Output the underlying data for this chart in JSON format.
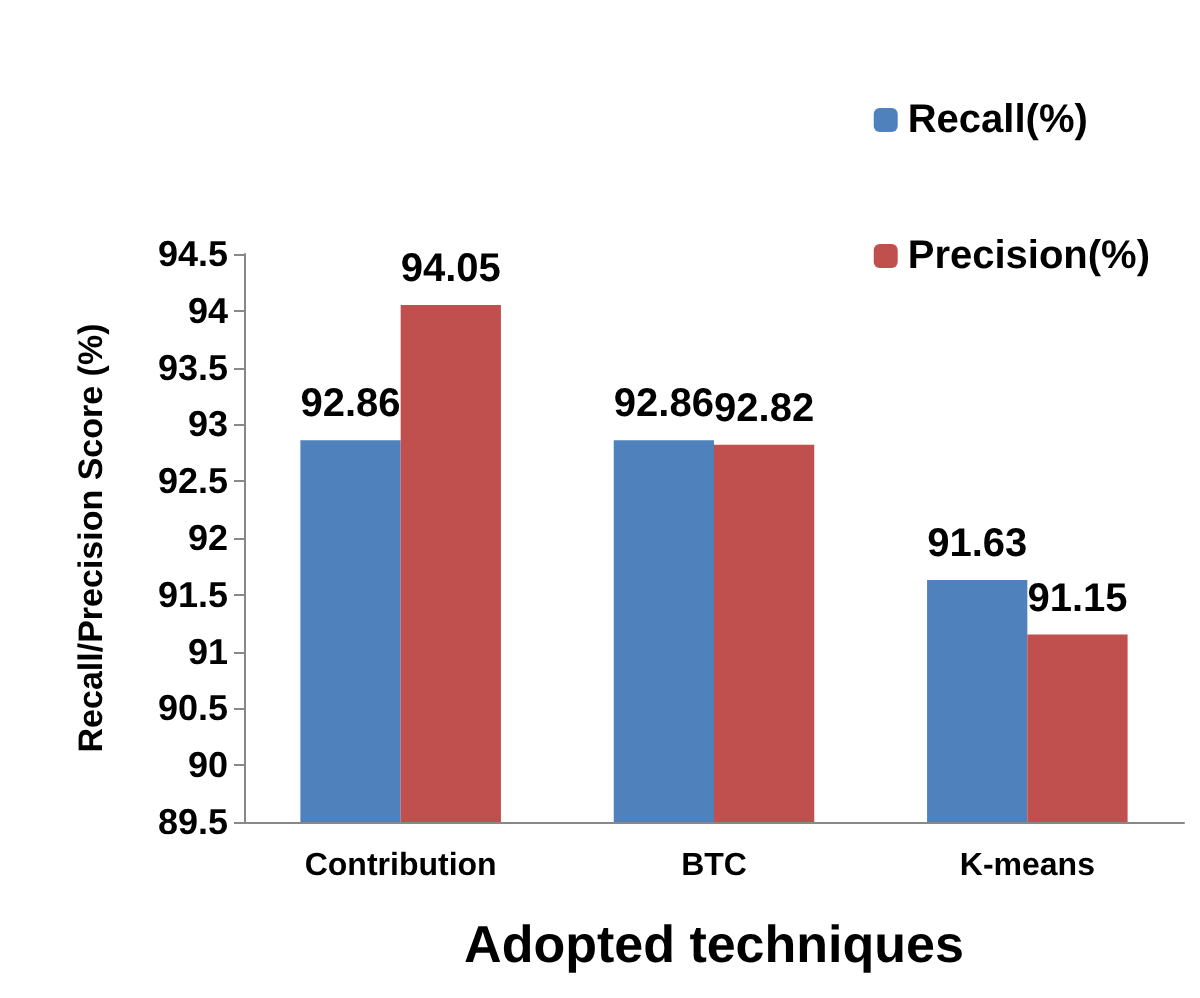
{
  "chart_data": {
    "type": "bar",
    "xlabel": "Adopted techniques",
    "ylabel": "Recall/Precision Score (%)",
    "categories": [
      "Contribution",
      "BTC",
      "K-means"
    ],
    "series": [
      {
        "name": "Recall(%)",
        "color": "#4f81bd",
        "values": [
          92.86,
          92.86,
          91.63
        ]
      },
      {
        "name": "Precision(%)",
        "color": "#c0504d",
        "values": [
          94.05,
          92.82,
          91.15
        ]
      }
    ],
    "ylim": [
      89.5,
      94.5
    ],
    "yticks": [
      89.5,
      90,
      90.5,
      91,
      91.5,
      92,
      92.5,
      93,
      93.5,
      94,
      94.5
    ],
    "data_labels": true,
    "grid": false,
    "legend": "top right"
  }
}
